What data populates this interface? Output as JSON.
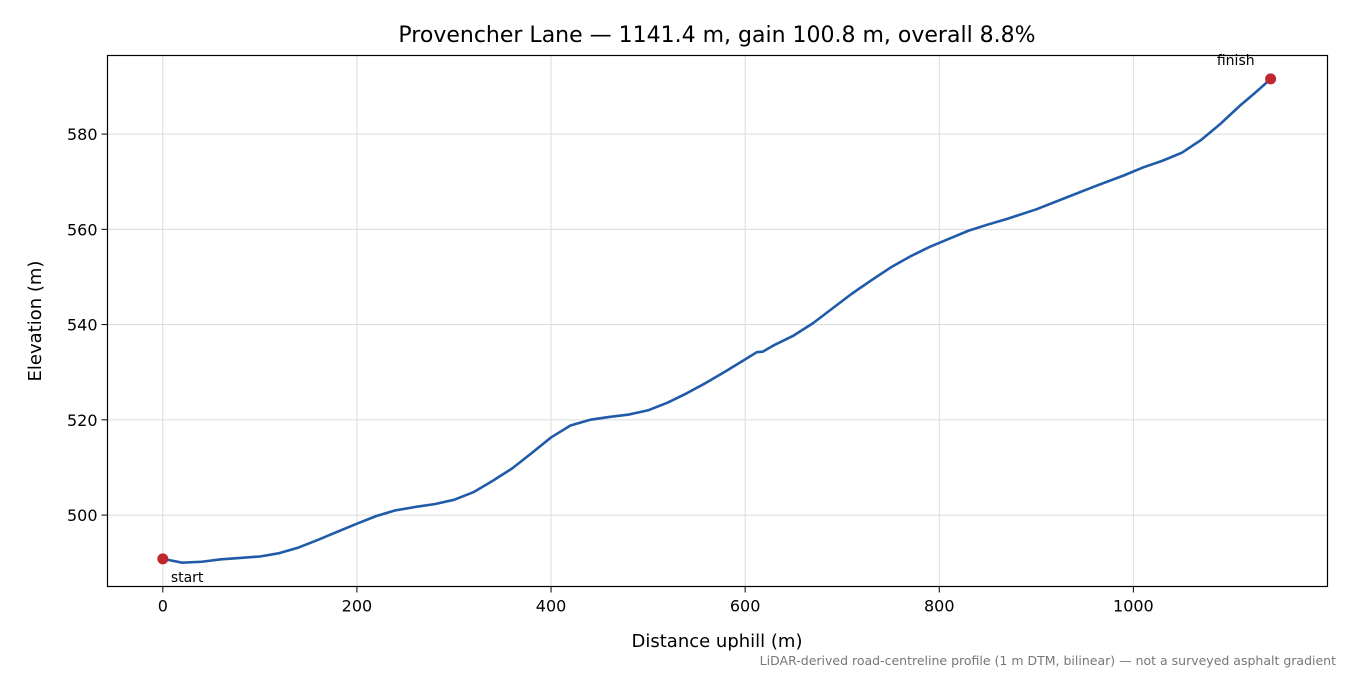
{
  "chart_data": {
    "type": "line",
    "title": "Provencher Lane — 1141.4 m, gain 100.8 m, overall 8.8%",
    "xlabel": "Distance uphill (m)",
    "ylabel": "Elevation (m)",
    "xlim": [
      -57,
      1200
    ],
    "ylim": [
      485,
      596.5
    ],
    "xticks": [
      0,
      200,
      400,
      600,
      800,
      1000
    ],
    "yticks": [
      500,
      520,
      540,
      560,
      580
    ],
    "grid": true,
    "legend": "none",
    "series": [
      {
        "color": "#1f5ba8",
        "points": [
          [
            0,
            490.8
          ],
          [
            10,
            490.4
          ],
          [
            20,
            490.0
          ],
          [
            40,
            490.2
          ],
          [
            60,
            490.7
          ],
          [
            80,
            491.0
          ],
          [
            100,
            491.3
          ],
          [
            120,
            492.0
          ],
          [
            140,
            493.2
          ],
          [
            160,
            494.8
          ],
          [
            180,
            496.5
          ],
          [
            200,
            498.2
          ],
          [
            220,
            499.8
          ],
          [
            240,
            501.0
          ],
          [
            260,
            501.7
          ],
          [
            280,
            502.3
          ],
          [
            300,
            503.2
          ],
          [
            320,
            504.8
          ],
          [
            340,
            507.2
          ],
          [
            360,
            509.8
          ],
          [
            380,
            513.0
          ],
          [
            400,
            516.3
          ],
          [
            420,
            518.8
          ],
          [
            440,
            520.0
          ],
          [
            460,
            520.6
          ],
          [
            480,
            521.1
          ],
          [
            500,
            522.0
          ],
          [
            520,
            523.6
          ],
          [
            540,
            525.6
          ],
          [
            560,
            527.8
          ],
          [
            580,
            530.2
          ],
          [
            600,
            532.7
          ],
          [
            612,
            534.2
          ],
          [
            618,
            534.3
          ],
          [
            630,
            535.7
          ],
          [
            650,
            537.7
          ],
          [
            670,
            540.3
          ],
          [
            690,
            543.4
          ],
          [
            710,
            546.5
          ],
          [
            730,
            549.3
          ],
          [
            750,
            552.0
          ],
          [
            770,
            554.3
          ],
          [
            790,
            556.3
          ],
          [
            810,
            558.0
          ],
          [
            830,
            559.7
          ],
          [
            850,
            561.0
          ],
          [
            870,
            562.2
          ],
          [
            900,
            564.2
          ],
          [
            930,
            566.6
          ],
          [
            960,
            569.0
          ],
          [
            990,
            571.3
          ],
          [
            1010,
            573.0
          ],
          [
            1030,
            574.4
          ],
          [
            1050,
            576.1
          ],
          [
            1070,
            578.8
          ],
          [
            1090,
            582.2
          ],
          [
            1110,
            586.0
          ],
          [
            1125,
            588.6
          ],
          [
            1135,
            590.4
          ],
          [
            1141.4,
            591.6
          ]
        ]
      }
    ],
    "markers": [
      {
        "label": "start",
        "x": 0,
        "y": 490.8,
        "color": "#c0262d"
      },
      {
        "label": "finish",
        "x": 1141.4,
        "y": 591.6,
        "color": "#c0262d"
      }
    ],
    "footnote": "LiDAR-derived road-centreline profile (1 m DTM, bilinear) — not a surveyed asphalt gradient"
  }
}
